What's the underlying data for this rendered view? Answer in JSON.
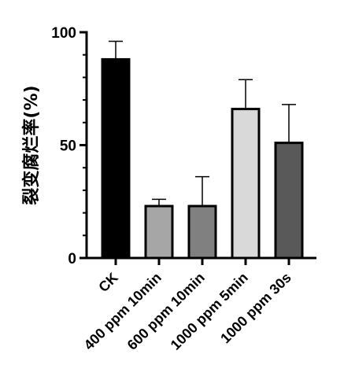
{
  "chart_data": {
    "type": "bar",
    "categories": [
      "CK",
      "400 ppm 10min",
      "600 ppm 10min",
      "1000 ppm 5min",
      "1000 ppm 30s"
    ],
    "values": [
      88,
      23,
      23,
      66,
      51
    ],
    "error_plus": [
      8,
      3,
      13,
      13,
      17
    ],
    "yticks": [
      0,
      50,
      100
    ],
    "ylabel": "裂变腐烂率(%)",
    "ylim": [
      0,
      100
    ],
    "bar_colors": [
      "#000000",
      "#a6a6a6",
      "#808080",
      "#d9d9d9",
      "#595959"
    ],
    "grid": false,
    "legend": "none"
  }
}
